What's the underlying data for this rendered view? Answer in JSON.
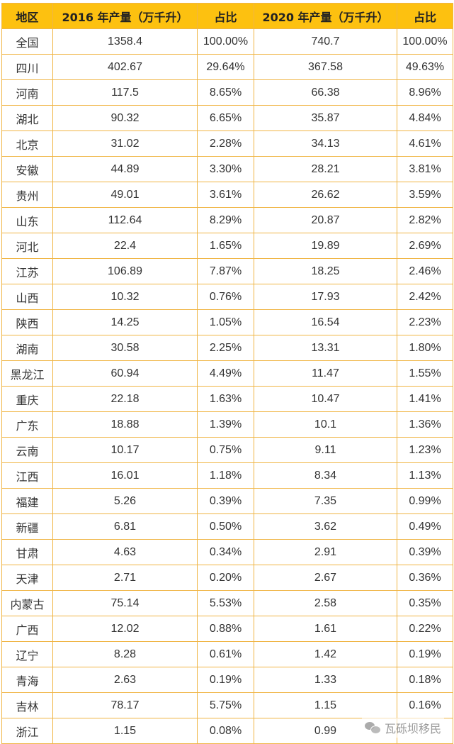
{
  "table": {
    "headers": [
      "地区",
      "2016 年产量（万千升）",
      "占比",
      "2020 年产量（万千升）",
      "占比"
    ],
    "rows": [
      [
        "全国",
        "1358.4",
        "100.00%",
        "740.7",
        "100.00%"
      ],
      [
        "四川",
        "402.67",
        "29.64%",
        "367.58",
        "49.63%"
      ],
      [
        "河南",
        "117.5",
        "8.65%",
        "66.38",
        "8.96%"
      ],
      [
        "湖北",
        "90.32",
        "6.65%",
        "35.87",
        "4.84%"
      ],
      [
        "北京",
        "31.02",
        "2.28%",
        "34.13",
        "4.61%"
      ],
      [
        "安徽",
        "44.89",
        "3.30%",
        "28.21",
        "3.81%"
      ],
      [
        "贵州",
        "49.01",
        "3.61%",
        "26.62",
        "3.59%"
      ],
      [
        "山东",
        "112.64",
        "8.29%",
        "20.87",
        "2.82%"
      ],
      [
        "河北",
        "22.4",
        "1.65%",
        "19.89",
        "2.69%"
      ],
      [
        "江苏",
        "106.89",
        "7.87%",
        "18.25",
        "2.46%"
      ],
      [
        "山西",
        "10.32",
        "0.76%",
        "17.93",
        "2.42%"
      ],
      [
        "陕西",
        "14.25",
        "1.05%",
        "16.54",
        "2.23%"
      ],
      [
        "湖南",
        "30.58",
        "2.25%",
        "13.31",
        "1.80%"
      ],
      [
        "黑龙江",
        "60.94",
        "4.49%",
        "11.47",
        "1.55%"
      ],
      [
        "重庆",
        "22.18",
        "1.63%",
        "10.47",
        "1.41%"
      ],
      [
        "广东",
        "18.88",
        "1.39%",
        "10.1",
        "1.36%"
      ],
      [
        "云南",
        "10.17",
        "0.75%",
        "9.11",
        "1.23%"
      ],
      [
        "江西",
        "16.01",
        "1.18%",
        "8.34",
        "1.13%"
      ],
      [
        "福建",
        "5.26",
        "0.39%",
        "7.35",
        "0.99%"
      ],
      [
        "新疆",
        "6.81",
        "0.50%",
        "3.62",
        "0.49%"
      ],
      [
        "甘肃",
        "4.63",
        "0.34%",
        "2.91",
        "0.39%"
      ],
      [
        "天津",
        "2.71",
        "0.20%",
        "2.67",
        "0.36%"
      ],
      [
        "内蒙古",
        "75.14",
        "5.53%",
        "2.58",
        "0.35%"
      ],
      [
        "广西",
        "12.02",
        "0.88%",
        "1.61",
        "0.22%"
      ],
      [
        "辽宁",
        "8.28",
        "0.61%",
        "1.42",
        "0.19%"
      ],
      [
        "青海",
        "2.63",
        "0.19%",
        "1.33",
        "0.18%"
      ],
      [
        "吉林",
        "78.17",
        "5.75%",
        "1.15",
        "0.16%"
      ],
      [
        "浙江",
        "1.15",
        "0.08%",
        "0.99",
        ""
      ]
    ]
  },
  "watermark": {
    "icon": "wechat-icon",
    "text": "瓦砾坝移民"
  },
  "colors": {
    "header_bg": "#fdc110",
    "border": "#f0b544"
  }
}
